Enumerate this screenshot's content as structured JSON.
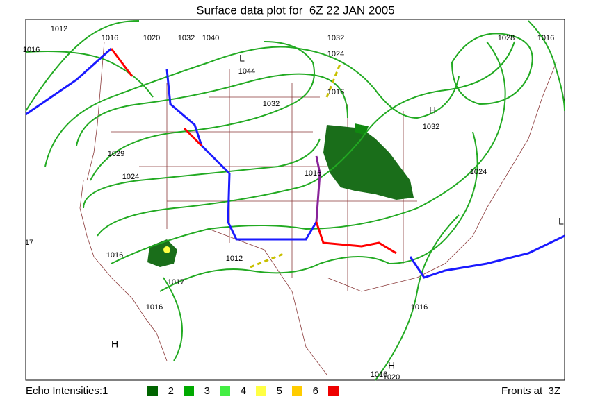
{
  "header": {
    "title": "Surface data plot for  6Z 22 JAN 2005"
  },
  "isobar_labels": [
    "1012",
    "1016",
    "1020",
    "1032",
    "1040",
    "1032",
    "1024",
    "1044",
    "1016",
    "1032",
    "1028",
    "1016",
    "1032",
    "1029",
    "1024",
    "1016",
    "1016",
    "1012",
    "1016",
    "1017",
    "1016",
    "1016",
    "1020",
    "1016",
    "1024",
    "17"
  ],
  "pressure_centers": [
    "H",
    "H",
    "L",
    "H",
    "L"
  ],
  "legend": {
    "echo_label": "Echo Intensities:1",
    "levels": [
      {
        "label": "",
        "color": "#006400"
      },
      {
        "label": "2",
        "color": "#00aa00"
      },
      {
        "label": "3",
        "color": "#44ee44"
      },
      {
        "label": "4",
        "color": "#ffff44"
      },
      {
        "label": "5",
        "color": "#ffcc00"
      },
      {
        "label": "6",
        "color": "#ee0000"
      }
    ],
    "fronts": "Fronts at  3Z"
  }
}
